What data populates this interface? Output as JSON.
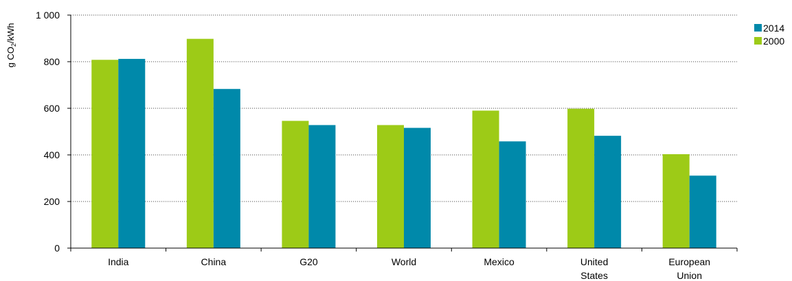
{
  "chart_data": {
    "type": "bar",
    "title": "",
    "xlabel": "",
    "ylabel": "g CO₂/kWh",
    "ylabel_parts": {
      "prefix": "g CO",
      "subscript": "2",
      "suffix": "/kWh"
    },
    "ylim": [
      0,
      1000
    ],
    "yticks": [
      0,
      200,
      400,
      600,
      800,
      1000
    ],
    "ytick_labels": [
      "0",
      "200",
      "400",
      "600",
      "800",
      "1 000"
    ],
    "grid": "horizontal-dotted",
    "legend_position": "right",
    "categories": [
      {
        "label_lines": [
          "India"
        ]
      },
      {
        "label_lines": [
          "China"
        ]
      },
      {
        "label_lines": [
          "G20"
        ]
      },
      {
        "label_lines": [
          "World"
        ]
      },
      {
        "label_lines": [
          "Mexico"
        ]
      },
      {
        "label_lines": [
          "United",
          "States"
        ]
      },
      {
        "label_lines": [
          "European",
          "Union"
        ]
      }
    ],
    "series": [
      {
        "name": "2000",
        "color": "#9dcb17",
        "values": [
          808,
          898,
          546,
          528,
          590,
          598,
          403
        ]
      },
      {
        "name": "2014",
        "color": "#0089aa",
        "values": [
          812,
          683,
          528,
          516,
          458,
          482,
          311
        ]
      }
    ],
    "legend": [
      {
        "name": "2014",
        "color": "#0089aa"
      },
      {
        "name": "2000",
        "color": "#9dcb17"
      }
    ]
  }
}
